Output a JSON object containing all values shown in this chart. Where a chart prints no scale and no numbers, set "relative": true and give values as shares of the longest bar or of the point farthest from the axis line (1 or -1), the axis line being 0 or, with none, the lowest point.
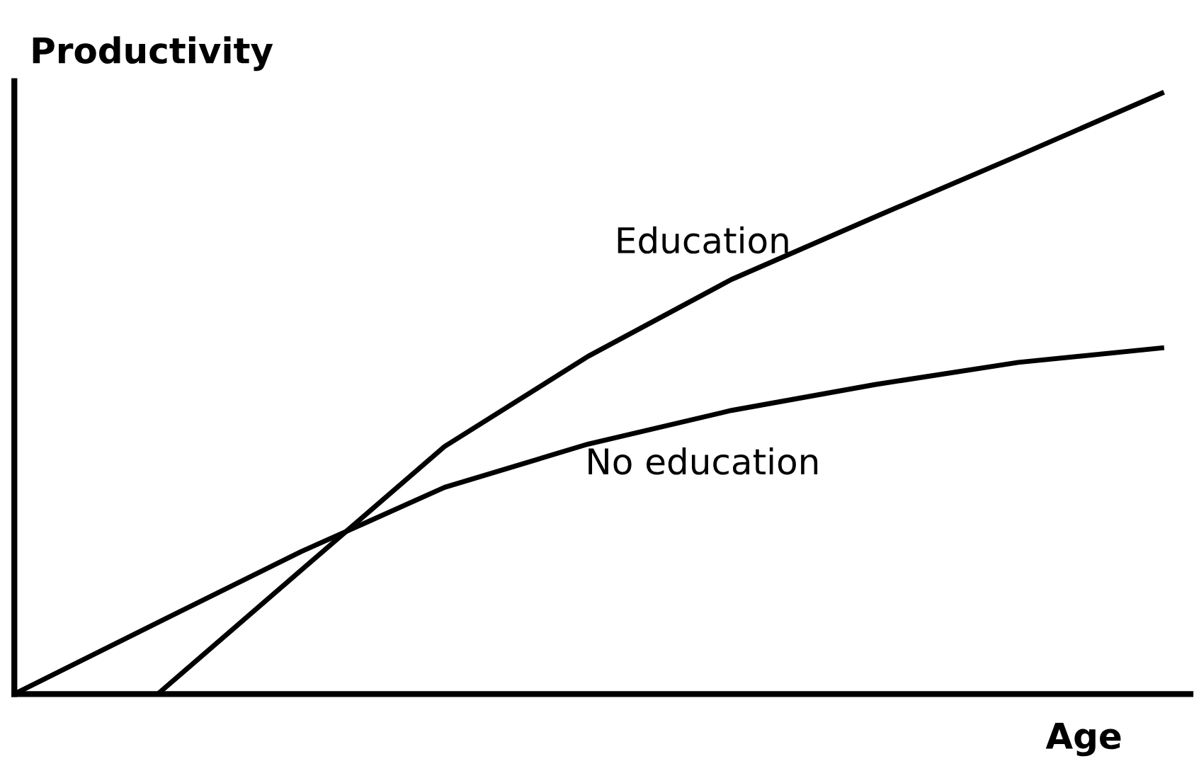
{
  "chart_data": {
    "type": "line",
    "relative": true,
    "xlabel": "Age",
    "ylabel": "Productivity",
    "legend": false,
    "marker": "none",
    "line_style": "solid",
    "categories": [
      null,
      null,
      null,
      null,
      null,
      null,
      null,
      null,
      null
    ],
    "series": [
      {
        "name": "Education",
        "color": "#000000",
        "values": [
          null,
          0,
          0.206,
          0.412,
          0.562,
          0.69,
          0.794,
          0.896,
          1
        ]
      },
      {
        "name": "No education",
        "color": "#000000",
        "values": [
          0,
          0.119,
          0.237,
          0.344,
          0.416,
          0.472,
          0.515,
          0.552,
          0.576
        ]
      }
    ]
  }
}
